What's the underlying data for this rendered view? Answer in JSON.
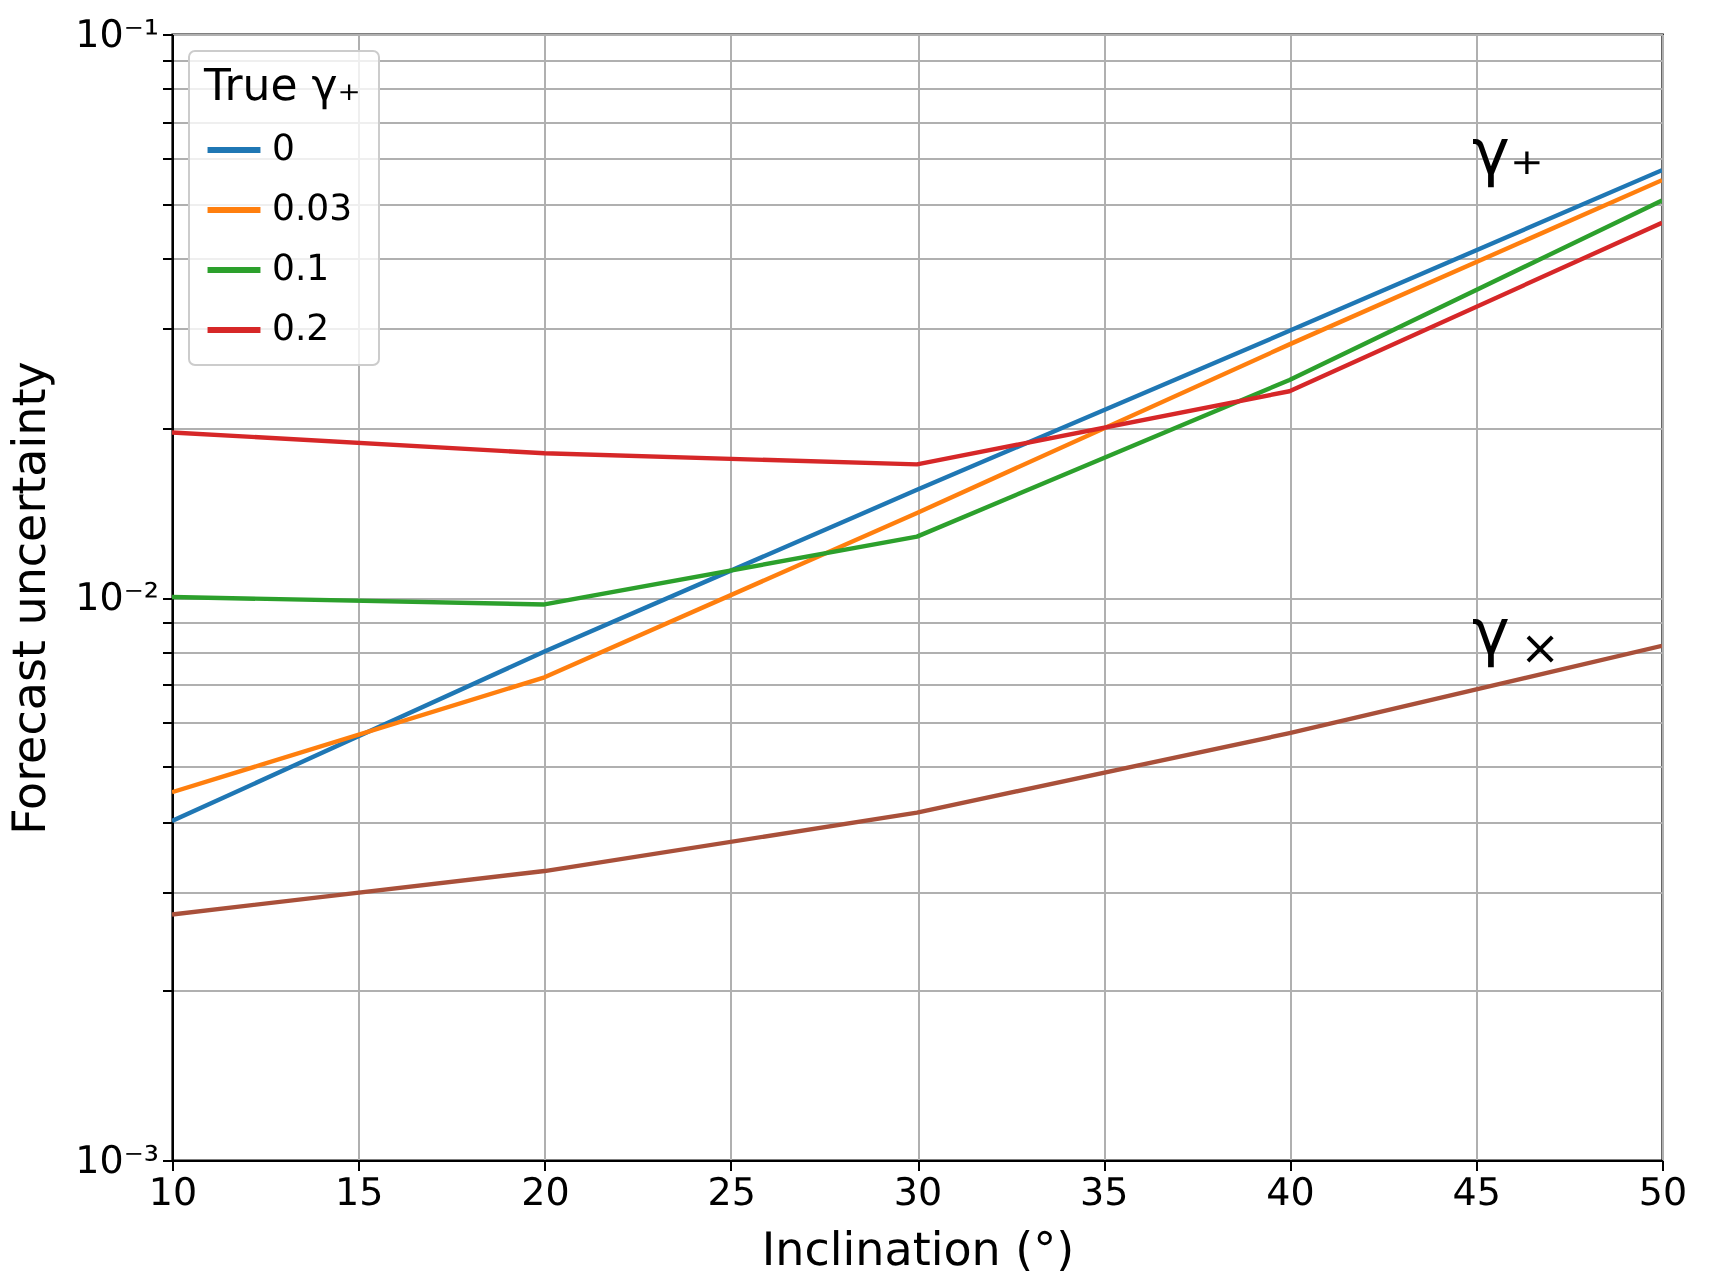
{
  "chart_data": {
    "type": "line",
    "xlabel": "Inclination (°)",
    "ylabel": "Forecast uncertainty",
    "legend_title": "True γ₊",
    "legend": "top left",
    "grid": true,
    "log": "y",
    "x": [
      10,
      20,
      30,
      40,
      50
    ],
    "xlim": [
      10,
      50
    ],
    "xticks": [
      10,
      15,
      20,
      25,
      30,
      35,
      40,
      45,
      50
    ],
    "ylim": [
      0.001,
      0.1
    ],
    "yticks": [
      {
        "value": 0.001,
        "label": "10⁻³"
      },
      {
        "value": 0.002,
        "label": null
      },
      {
        "value": 0.003,
        "label": null
      },
      {
        "value": 0.004,
        "label": null
      },
      {
        "value": 0.005,
        "label": null
      },
      {
        "value": 0.006,
        "label": null
      },
      {
        "value": 0.007,
        "label": null
      },
      {
        "value": 0.008,
        "label": null
      },
      {
        "value": 0.009,
        "label": null
      },
      {
        "value": 0.01,
        "label": "10⁻²"
      },
      {
        "value": 0.02,
        "label": null
      },
      {
        "value": 0.03,
        "label": null
      },
      {
        "value": 0.04,
        "label": null
      },
      {
        "value": 0.05,
        "label": null
      },
      {
        "value": 0.06,
        "label": null
      },
      {
        "value": 0.07,
        "label": null
      },
      {
        "value": 0.08,
        "label": null
      },
      {
        "value": 0.09,
        "label": null
      },
      {
        "value": 0.1,
        "label": "10⁻¹"
      }
    ],
    "series": [
      {
        "name": "0",
        "color": "#1f77b4",
        "values": [
          0.004,
          0.008,
          0.0155,
          0.0297,
          0.0573
        ]
      },
      {
        "name": "0.03",
        "color": "#ff7f0e",
        "values": [
          0.0045,
          0.0072,
          0.0141,
          0.0281,
          0.055
        ]
      },
      {
        "name": "0.1",
        "color": "#2ca02c",
        "values": [
          0.01,
          0.0097,
          0.0128,
          0.0243,
          0.0506
        ]
      },
      {
        "name": "0.2",
        "color": "#d62728",
        "values": [
          0.0196,
          0.018,
          0.0172,
          0.0232,
          0.0462
        ]
      },
      {
        "color": "#a9503a",
        "values": [
          0.00273,
          0.00326,
          0.00414,
          0.00573,
          0.00819
        ]
      }
    ],
    "annotations": [
      "γ₊",
      "γ$_{×}$"
    ]
  }
}
